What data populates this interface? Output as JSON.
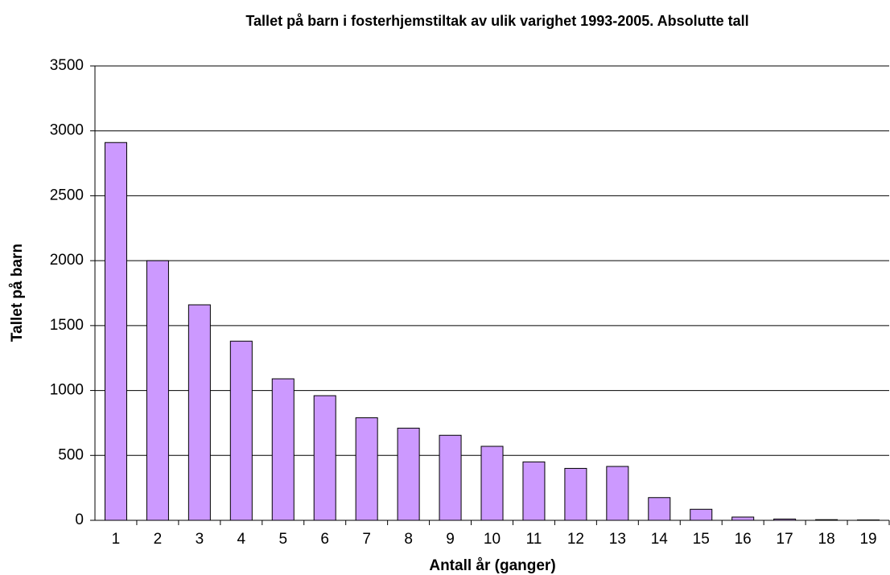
{
  "chart_data": {
    "type": "bar",
    "title": "Tallet på barn i fosterhjemstiltak av ulik varighet 1993-2005.  Absolutte tall",
    "x_label": "Antall år (ganger)",
    "y_label": "Tallet på barn",
    "categories": [
      "1",
      "2",
      "3",
      "4",
      "5",
      "6",
      "7",
      "8",
      "9",
      "10",
      "11",
      "12",
      "13",
      "14",
      "15",
      "16",
      "17",
      "18",
      "19"
    ],
    "values": [
      2910,
      2000,
      1660,
      1380,
      1090,
      960,
      790,
      710,
      655,
      570,
      450,
      400,
      415,
      175,
      85,
      25,
      10,
      5,
      3
    ],
    "color": "#cc99ff",
    "ylim": [
      0,
      3500
    ],
    "yticks": [
      0,
      500,
      1000,
      1500,
      2000,
      2500,
      3000,
      3500
    ],
    "grid": true
  }
}
